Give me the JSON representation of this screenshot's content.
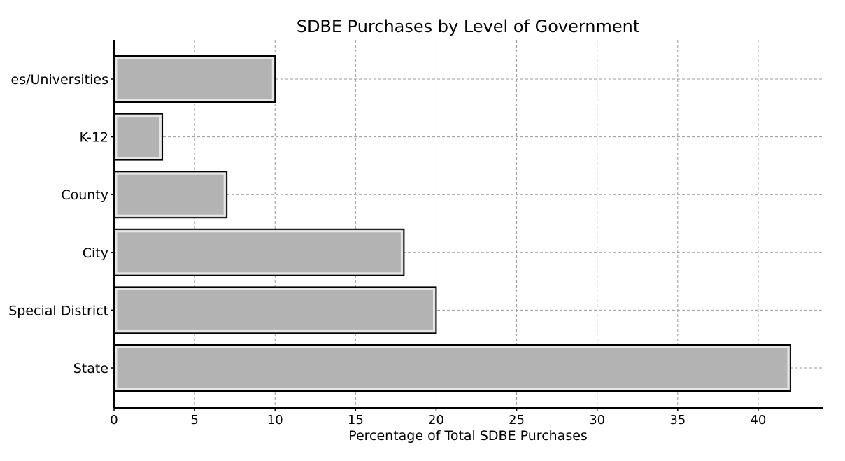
{
  "chart_data": {
    "type": "bar",
    "orientation": "horizontal",
    "title": "SDBE Purchases by Level of Government",
    "xlabel": "Percentage of Total SDBE Purchases",
    "ylabel": "",
    "categories": [
      "State",
      "Special District",
      "City",
      "County",
      "K-12",
      "es/Universities"
    ],
    "values": [
      42,
      20,
      18,
      7,
      3,
      10
    ],
    "xlim": [
      0,
      44
    ],
    "xticks": [
      0,
      5,
      10,
      15,
      20,
      25,
      30,
      35,
      40
    ],
    "grid": true,
    "bar_color": "#b3b3b3",
    "bar_edge_color": "#000000"
  }
}
